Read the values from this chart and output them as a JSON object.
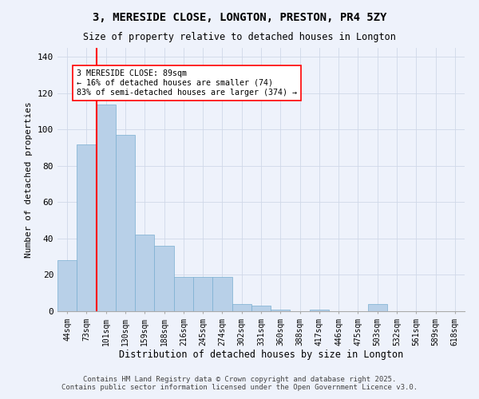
{
  "title": "3, MERESIDE CLOSE, LONGTON, PRESTON, PR4 5ZY",
  "subtitle": "Size of property relative to detached houses in Longton",
  "xlabel": "Distribution of detached houses by size in Longton",
  "ylabel": "Number of detached properties",
  "categories": [
    "44sqm",
    "73sqm",
    "101sqm",
    "130sqm",
    "159sqm",
    "188sqm",
    "216sqm",
    "245sqm",
    "274sqm",
    "302sqm",
    "331sqm",
    "360sqm",
    "388sqm",
    "417sqm",
    "446sqm",
    "475sqm",
    "503sqm",
    "532sqm",
    "561sqm",
    "589sqm",
    "618sqm"
  ],
  "values": [
    28,
    92,
    114,
    97,
    42,
    36,
    19,
    19,
    19,
    4,
    3,
    1,
    0,
    1,
    0,
    0,
    4,
    0,
    0,
    0,
    0
  ],
  "bar_color": "#b8d0e8",
  "bar_edge_color": "#7aaed0",
  "background_color": "#eef2fb",
  "grid_color": "#d0d8e8",
  "vline_index": 2,
  "vline_color": "red",
  "annotation_text": "3 MERESIDE CLOSE: 89sqm\n← 16% of detached houses are smaller (74)\n83% of semi-detached houses are larger (374) →",
  "annotation_box_color": "white",
  "annotation_box_edge": "red",
  "ylim": [
    0,
    145
  ],
  "yticks": [
    0,
    20,
    40,
    60,
    80,
    100,
    120,
    140
  ],
  "footer_line1": "Contains HM Land Registry data © Crown copyright and database right 2025.",
  "footer_line2": "Contains public sector information licensed under the Open Government Licence v3.0."
}
